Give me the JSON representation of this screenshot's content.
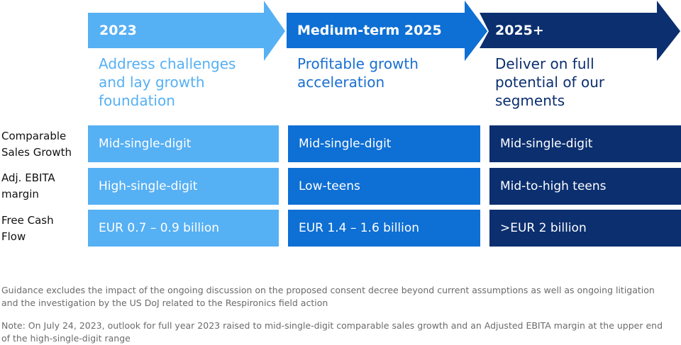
{
  "colors": {
    "phase1": "#56b0f4",
    "phase2": "#0e6fd4",
    "phase3": "#0b2f6f",
    "desc_text": "#1a6fd1",
    "desc_text_dark": "#0b2f6f"
  },
  "phases": [
    {
      "label": "2023",
      "description": "Address challenges\nand lay growth\nfoundation"
    },
    {
      "label": "Medium-term 2025",
      "description": "Profitable growth\nacceleration"
    },
    {
      "label": "2025+",
      "description": "Deliver on full\npotential of our\nsegments"
    }
  ],
  "rows": [
    {
      "label": "Comparable\nSales Growth",
      "values": [
        "Mid-single-digit",
        "Mid-single-digit",
        "Mid-single-digit"
      ]
    },
    {
      "label": "Adj. EBITA\nmargin",
      "values": [
        "High-single-digit",
        "Low-teens",
        "Mid-to-high teens"
      ]
    },
    {
      "label": "Free Cash\nFlow",
      "values": [
        "EUR 0.7 – 0.9 billion",
        "EUR 1.4 – 1.6 billion",
        ">EUR 2 billion"
      ]
    }
  ],
  "footnotes": [
    "Guidance excludes the impact of the ongoing discussion on the proposed consent decree beyond current assumptions as well as ongoing litigation and the investigation by the US DoJ related to the Respironics field action",
    "Note: On July 24, 2023, outlook for full year 2023 raised to mid-single-digit comparable sales growth and an Adjusted EBITA margin at the upper end of the high-single-digit range"
  ]
}
